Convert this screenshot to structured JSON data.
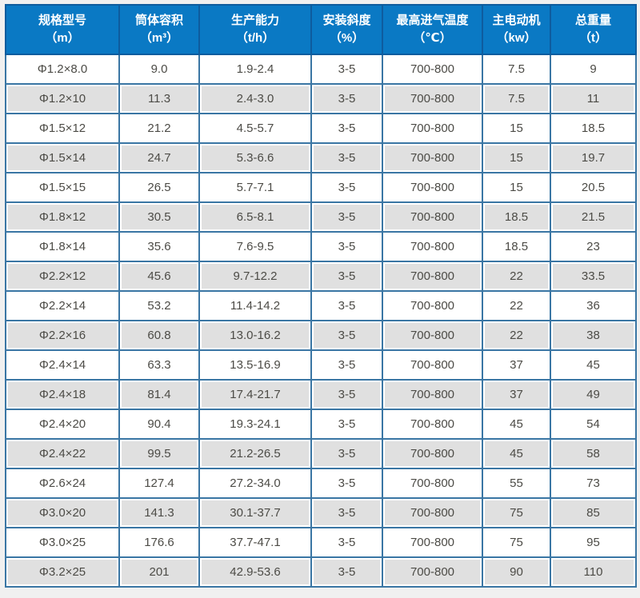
{
  "colors": {
    "page_bg": "#f0f0f0",
    "header_bg": "#0a79c4",
    "header_border": "#0e5c9e",
    "header_text": "#ffffff",
    "grid_border": "#3a76a4",
    "outer_border": "#2e6d9e",
    "row_bg": "#ffffff",
    "row_alt_bg": "#e0e0e0",
    "cell_inset": "#ffffff",
    "text": "#4c4b46"
  },
  "table": {
    "columns": [
      {
        "label": "规格型号",
        "unit": "（m）"
      },
      {
        "label": "筒体容积",
        "unit": "（m³）"
      },
      {
        "label": "生产能力",
        "unit": "（t/h）"
      },
      {
        "label": "安装斜度",
        "unit": "（%）"
      },
      {
        "label": "最高进气温度",
        "unit": "（℃）"
      },
      {
        "label": "主电动机",
        "unit": "（kw）"
      },
      {
        "label": "总重量",
        "unit": "（t）"
      }
    ],
    "rows": [
      [
        "Φ1.2×8.0",
        "9.0",
        "1.9-2.4",
        "3-5",
        "700-800",
        "7.5",
        "9"
      ],
      [
        "Φ1.2×10",
        "11.3",
        "2.4-3.0",
        "3-5",
        "700-800",
        "7.5",
        "11"
      ],
      [
        "Φ1.5×12",
        "21.2",
        "4.5-5.7",
        "3-5",
        "700-800",
        "15",
        "18.5"
      ],
      [
        "Φ1.5×14",
        "24.7",
        "5.3-6.6",
        "3-5",
        "700-800",
        "15",
        "19.7"
      ],
      [
        "Φ1.5×15",
        "26.5",
        "5.7-7.1",
        "3-5",
        "700-800",
        "15",
        "20.5"
      ],
      [
        "Φ1.8×12",
        "30.5",
        "6.5-8.1",
        "3-5",
        "700-800",
        "18.5",
        "21.5"
      ],
      [
        "Φ1.8×14",
        "35.6",
        "7.6-9.5",
        "3-5",
        "700-800",
        "18.5",
        "23"
      ],
      [
        "Φ2.2×12",
        "45.6",
        "9.7-12.2",
        "3-5",
        "700-800",
        "22",
        "33.5"
      ],
      [
        "Φ2.2×14",
        "53.2",
        "11.4-14.2",
        "3-5",
        "700-800",
        "22",
        "36"
      ],
      [
        "Φ2.2×16",
        "60.8",
        "13.0-16.2",
        "3-5",
        "700-800",
        "22",
        "38"
      ],
      [
        "Φ2.4×14",
        "63.3",
        "13.5-16.9",
        "3-5",
        "700-800",
        "37",
        "45"
      ],
      [
        "Φ2.4×18",
        "81.4",
        "17.4-21.7",
        "3-5",
        "700-800",
        "37",
        "49"
      ],
      [
        "Φ2.4×20",
        "90.4",
        "19.3-24.1",
        "3-5",
        "700-800",
        "45",
        "54"
      ],
      [
        "Φ2.4×22",
        "99.5",
        "21.2-26.5",
        "3-5",
        "700-800",
        "45",
        "58"
      ],
      [
        "Φ2.6×24",
        "127.4",
        "27.2-34.0",
        "3-5",
        "700-800",
        "55",
        "73"
      ],
      [
        "Φ3.0×20",
        "141.3",
        "30.1-37.7",
        "3-5",
        "700-800",
        "75",
        "85"
      ],
      [
        "Φ3.0×25",
        "176.6",
        "37.7-47.1",
        "3-5",
        "700-800",
        "75",
        "95"
      ],
      [
        "Φ3.2×25",
        "201",
        "42.9-53.6",
        "3-5",
        "700-800",
        "90",
        "110"
      ]
    ]
  }
}
